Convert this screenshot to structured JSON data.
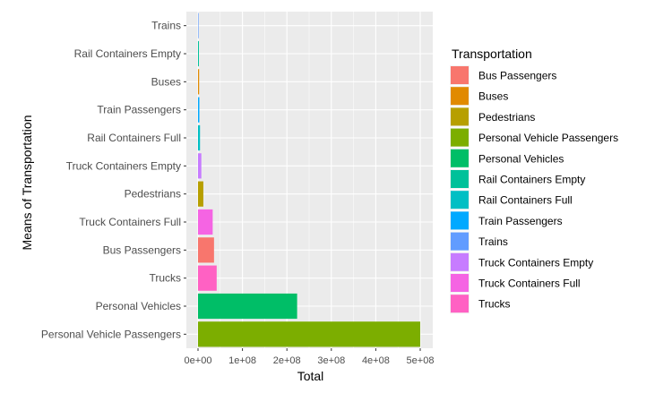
{
  "chart_data": {
    "type": "bar",
    "orientation": "horizontal",
    "xlabel": "Total",
    "ylabel": "Means of Transportation",
    "xlim": [
      0,
      520000000
    ],
    "xticks": [
      0,
      100000000,
      200000000,
      300000000,
      400000000,
      500000000
    ],
    "xtick_labels": [
      "0e+00",
      "1e+08",
      "2e+08",
      "3e+08",
      "4e+08",
      "5e+08"
    ],
    "grid": true,
    "legend_position": "right",
    "legend_title": "Transportation",
    "categories": [
      "Personal Vehicle Passengers",
      "Personal Vehicles",
      "Trucks",
      "Bus Passengers",
      "Truck Containers Full",
      "Pedestrians",
      "Truck Containers Empty",
      "Rail Containers Full",
      "Train Passengers",
      "Buses",
      "Rail Containers Empty",
      "Trains"
    ],
    "values": [
      500000000,
      223000000,
      42000000,
      36000000,
      33000000,
      12000000,
      7500000,
      4500000,
      3000000,
      2500000,
      2000000,
      500000
    ],
    "colors": [
      "#7CAE00",
      "#00BE67",
      "#FF61C3",
      "#F8766D",
      "#F564E3",
      "#B79F00",
      "#C77CFF",
      "#00BFC4",
      "#00A9FF",
      "#E18A00",
      "#00C19A",
      "#619CFF"
    ],
    "legend": [
      {
        "label": "Bus Passengers",
        "color": "#F8766D"
      },
      {
        "label": "Buses",
        "color": "#E18A00"
      },
      {
        "label": "Pedestrians",
        "color": "#B79F00"
      },
      {
        "label": "Personal Vehicle Passengers",
        "color": "#7CAE00"
      },
      {
        "label": "Personal Vehicles",
        "color": "#00BE67"
      },
      {
        "label": "Rail Containers Empty",
        "color": "#00C19A"
      },
      {
        "label": "Rail Containers Full",
        "color": "#00BFC4"
      },
      {
        "label": "Train Passengers",
        "color": "#00A9FF"
      },
      {
        "label": "Trains",
        "color": "#619CFF"
      },
      {
        "label": "Truck Containers Empty",
        "color": "#C77CFF"
      },
      {
        "label": "Truck Containers Full",
        "color": "#F564E3"
      },
      {
        "label": "Trucks",
        "color": "#FF61C3"
      }
    ],
    "panel_color": "#EBEBEB"
  }
}
